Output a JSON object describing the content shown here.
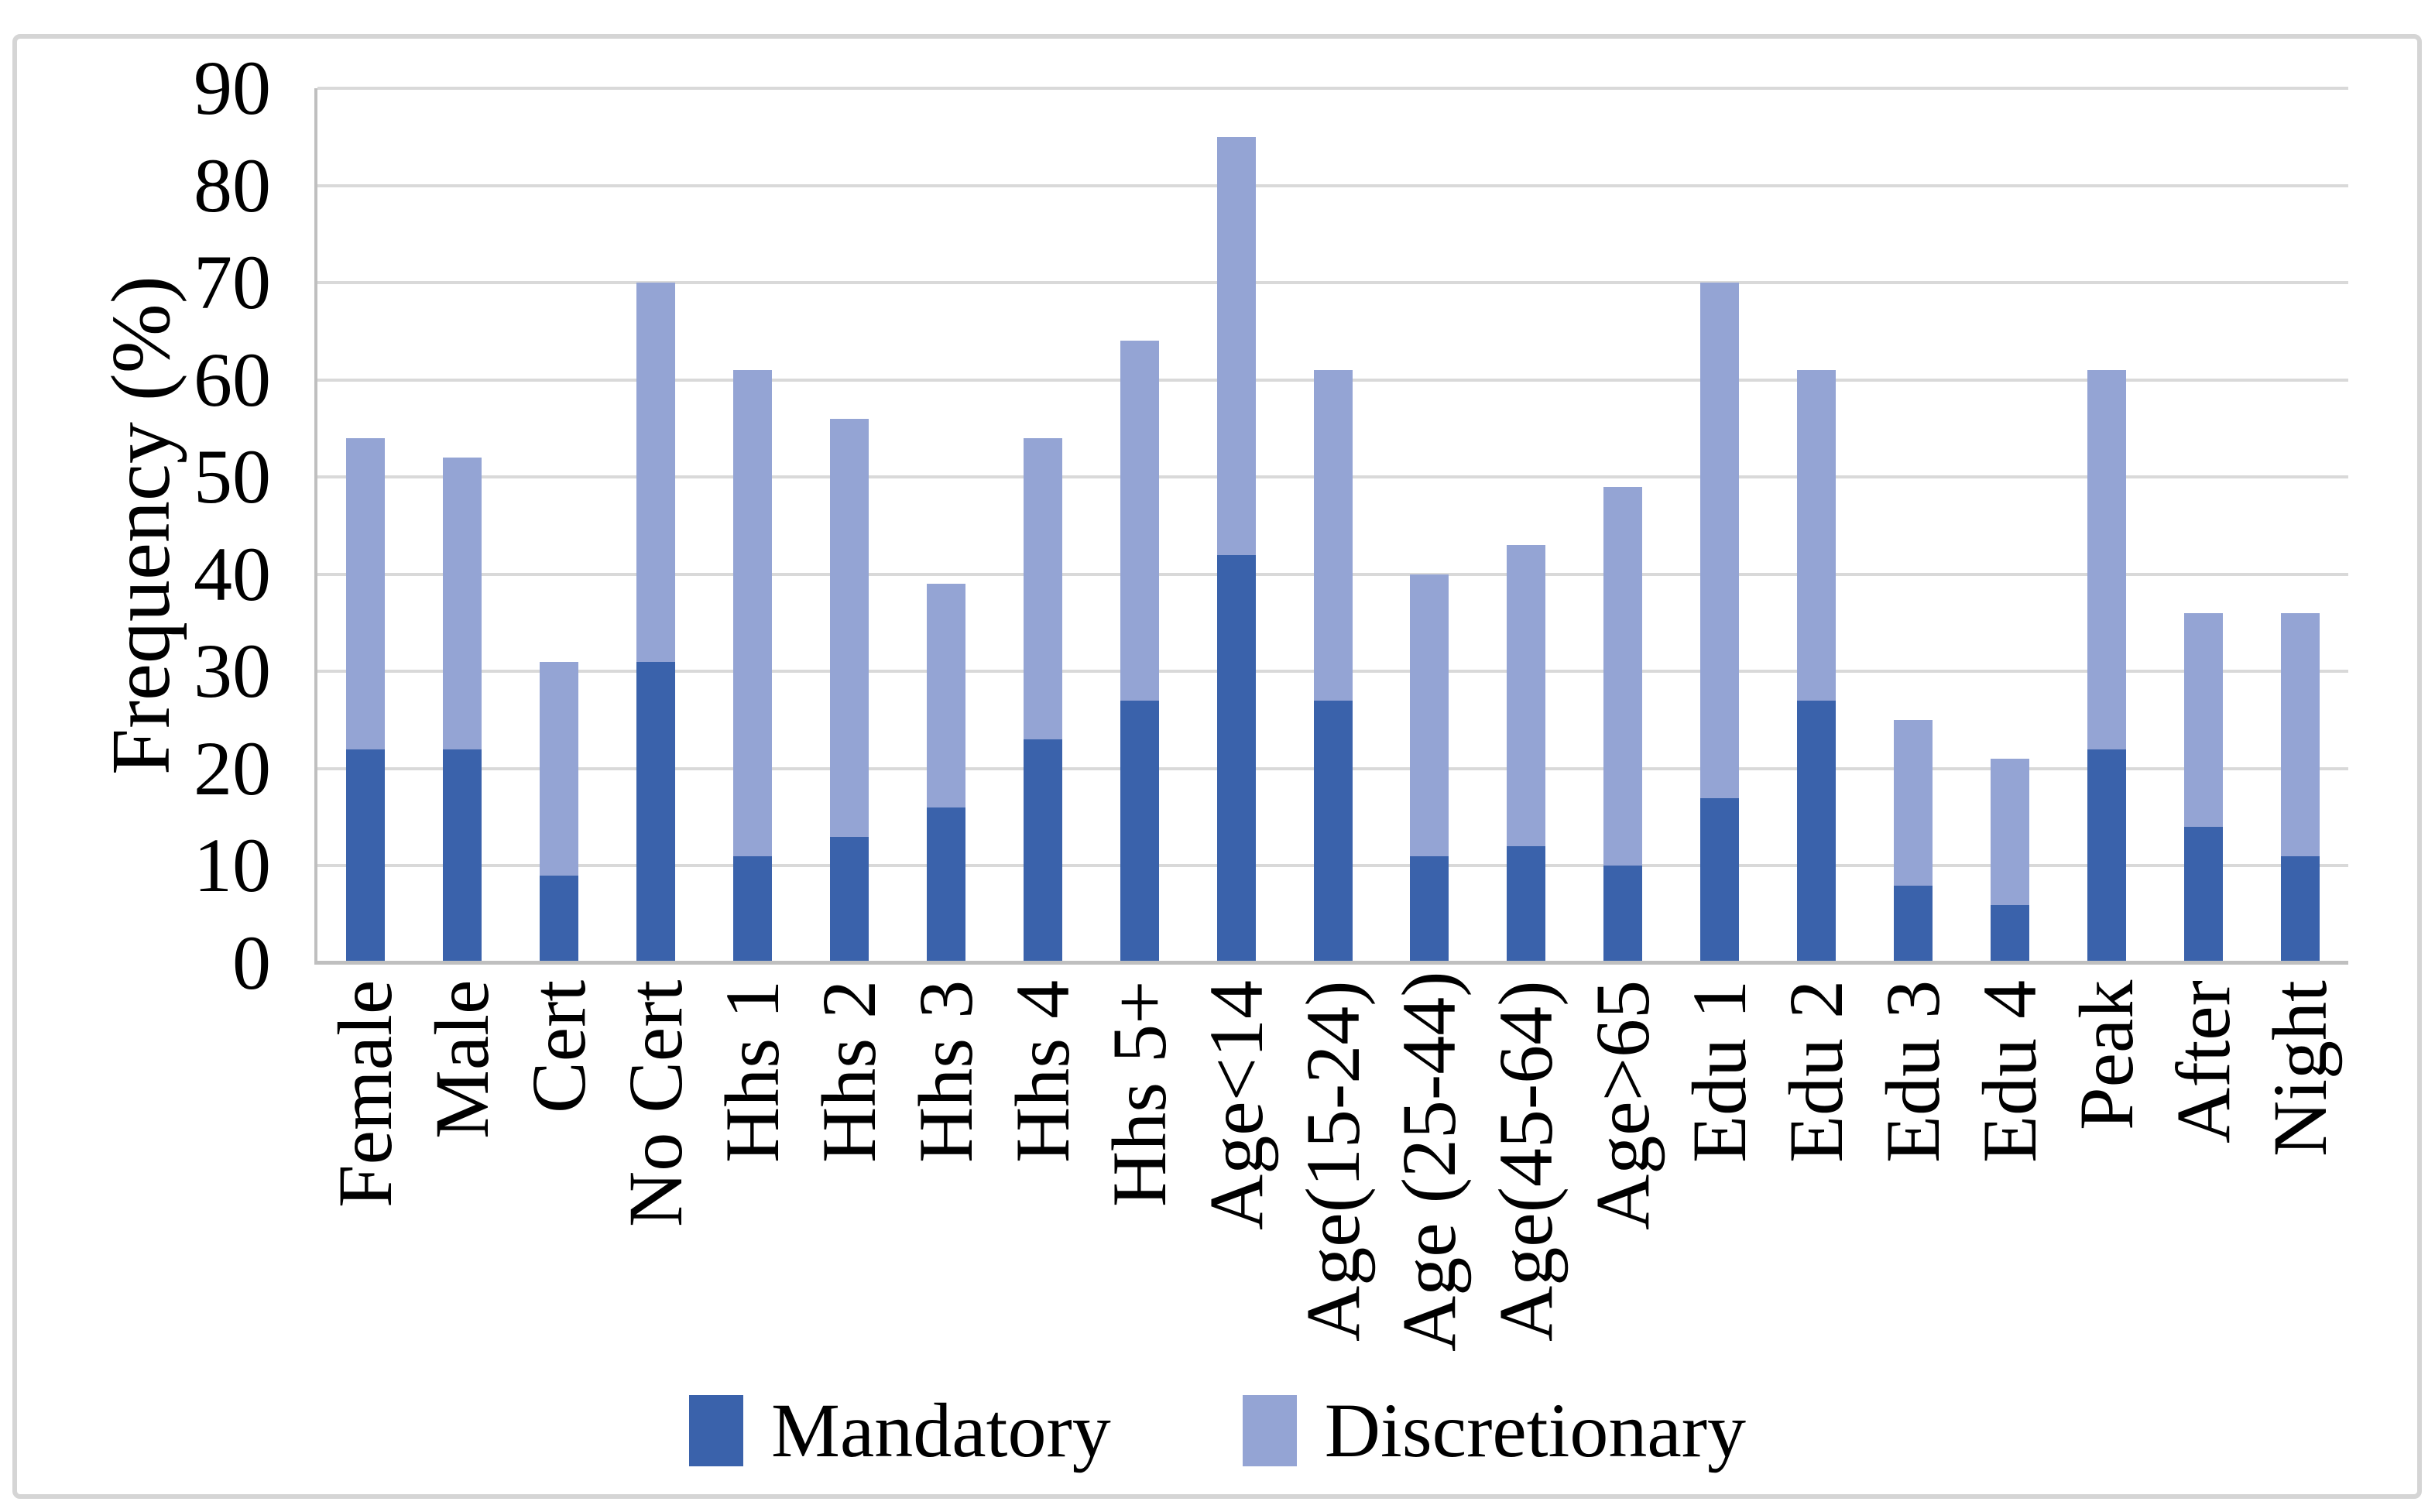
{
  "figure": {
    "description": "stacked bar chart of activity frequency by socio-demographic group"
  },
  "chart_data": {
    "type": "bar",
    "stacked": true,
    "title": "",
    "xlabel": "",
    "ylabel": "Frequency (%)",
    "ylim": [
      0,
      90
    ],
    "ytick_step": 10,
    "ytick_labels": [
      "0",
      "10",
      "20",
      "30",
      "40",
      "50",
      "60",
      "70",
      "80",
      "90"
    ],
    "grid": "horizontal",
    "legend_position": "bottom-center",
    "categories": [
      "Female",
      "Male",
      "Cert",
      "No Cert",
      "Hhs 1",
      "Hhs 2",
      "Hhs 3",
      "Hhs 4",
      "Hhs 5+",
      "Age<14",
      "Age(15-24)",
      "Age (25-44)",
      "Age(45-64)",
      "Age>65",
      "Edu 1",
      "Edu 2",
      "Edu 3",
      "Edu 4",
      "Peak",
      "After",
      "Night"
    ],
    "series": [
      {
        "name": "Mandatory",
        "color": "#3A62AB",
        "values": [
          22,
          22,
          9,
          31,
          11,
          13,
          16,
          23,
          27,
          42,
          27,
          11,
          12,
          10,
          17,
          27,
          8,
          6,
          22,
          14,
          11
        ]
      },
      {
        "name": "Discretionary",
        "color": "#94A4D4",
        "values": [
          32,
          30,
          22,
          39,
          50,
          43,
          23,
          31,
          37,
          43,
          34,
          29,
          31,
          39,
          53,
          34,
          17,
          15,
          39,
          22,
          25
        ]
      }
    ],
    "stack_totals": [
      54,
      52,
      31,
      70,
      61,
      56,
      39,
      54,
      64,
      85,
      61,
      40,
      43,
      49,
      70,
      61,
      25,
      21,
      61,
      36,
      36
    ],
    "colors": {
      "gridline": "#D9D9D9",
      "axis_line": "#BFBFBF",
      "figure_border": "#D5D5D5",
      "background": "#FFFFFF"
    }
  }
}
